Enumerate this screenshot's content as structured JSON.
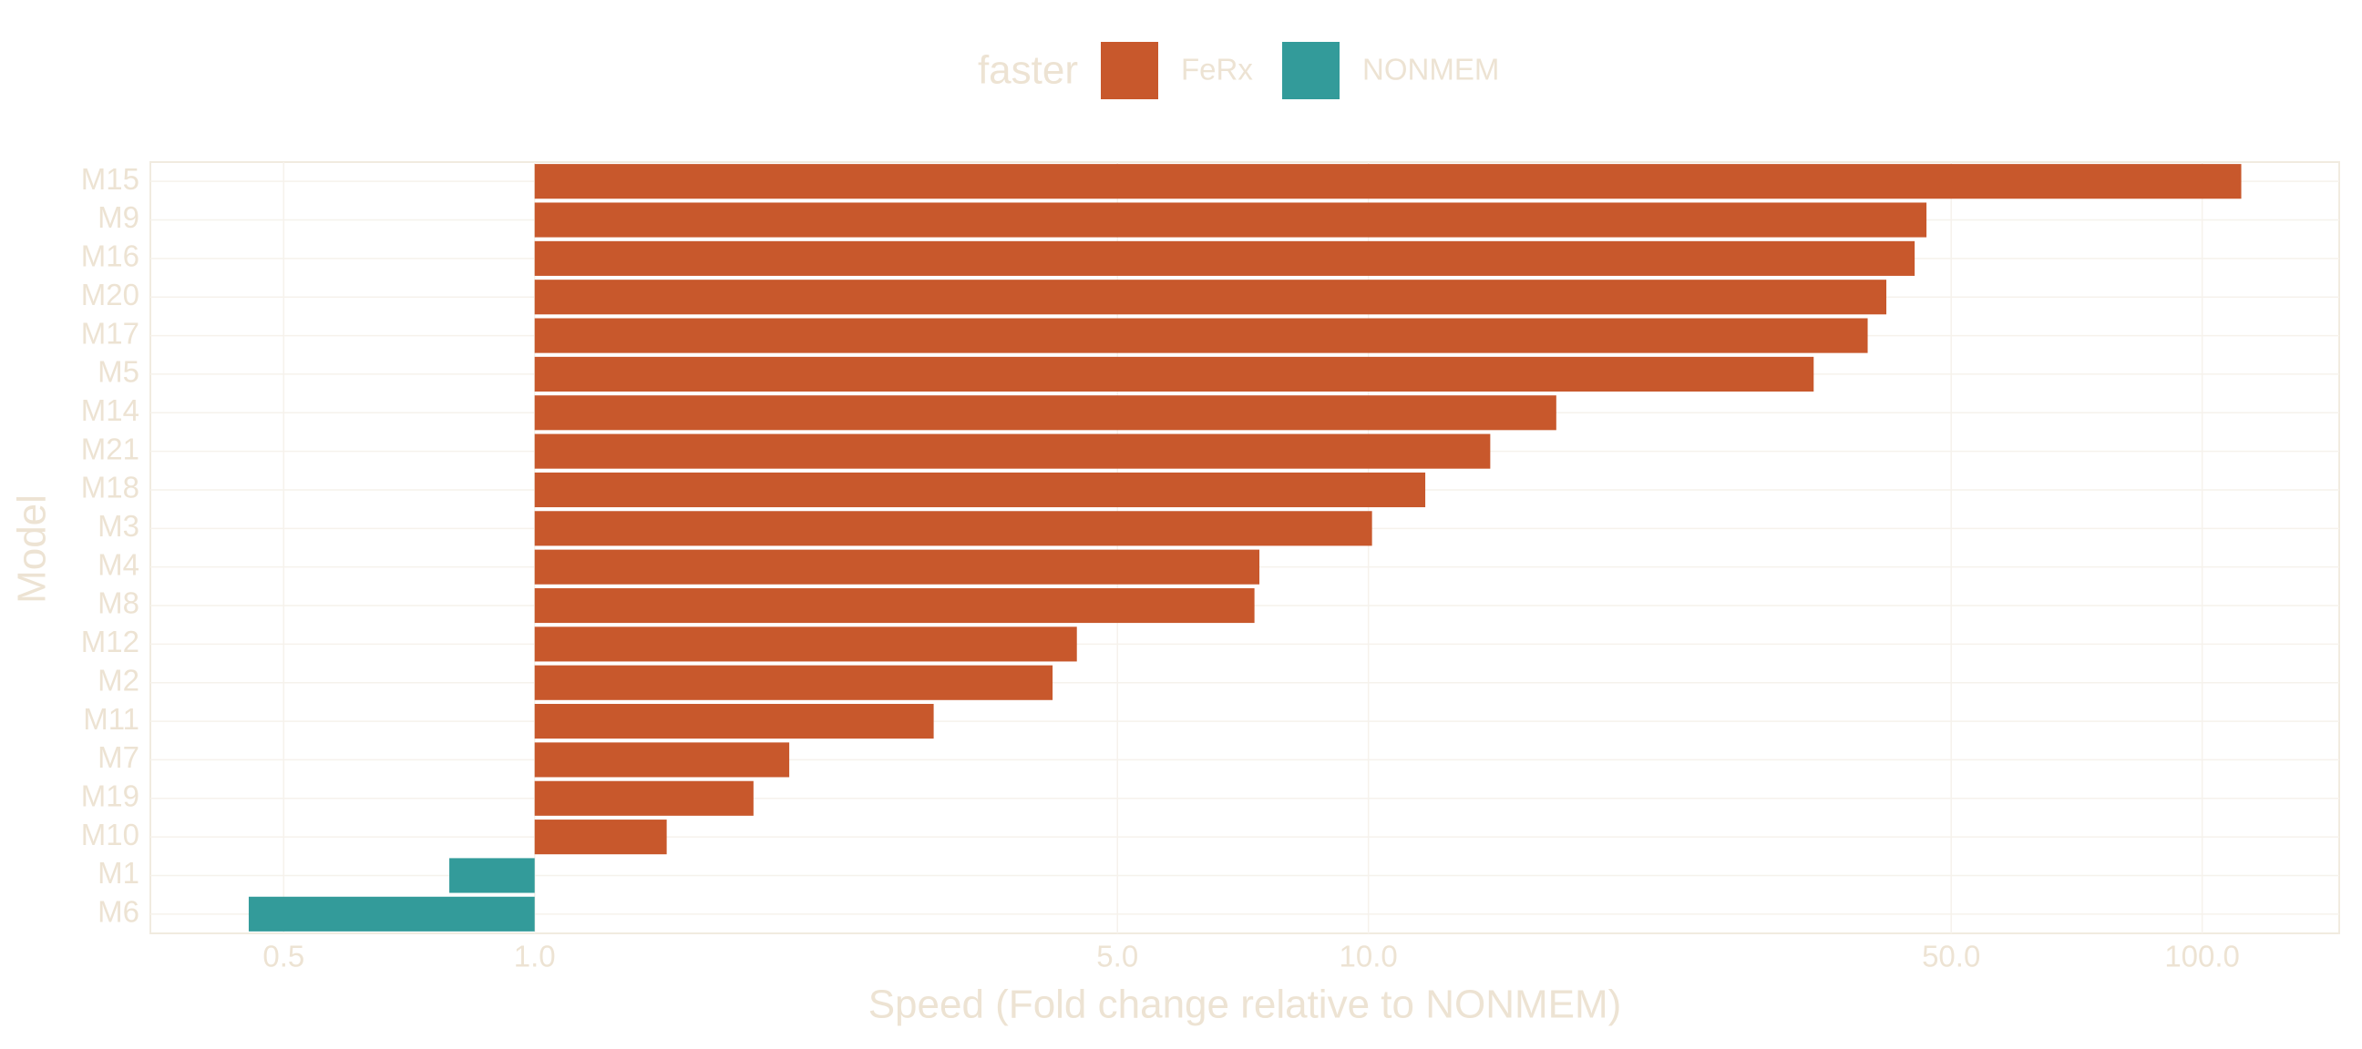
{
  "chart_data": {
    "type": "bar",
    "orientation": "horizontal",
    "x_scale": "log",
    "x_label": "Speed (Fold change relative to NONMEM)",
    "y_label": "Model",
    "legend_title": "faster",
    "legend_position": "top",
    "grid": true,
    "categories": [
      "M15",
      "M9",
      "M16",
      "M20",
      "M17",
      "M5",
      "M14",
      "M21",
      "M18",
      "M3",
      "M4",
      "M8",
      "M12",
      "M2",
      "M11",
      "M7",
      "M19",
      "M10",
      "M1",
      "M6"
    ],
    "series": [
      {
        "name": "FeRx",
        "color": "#c8582c",
        "values": [
          111.4,
          46.7,
          45.2,
          41.8,
          39.7,
          34.2,
          16.8,
          14.0,
          11.7,
          10.1,
          7.4,
          7.3,
          4.47,
          4.18,
          3.01,
          2.02,
          1.83,
          1.44,
          null,
          null
        ]
      },
      {
        "name": "NONMEM",
        "color": "#339b9a",
        "values": [
          null,
          null,
          null,
          null,
          null,
          null,
          null,
          null,
          null,
          null,
          null,
          null,
          null,
          null,
          null,
          null,
          null,
          null,
          0.79,
          0.454
        ]
      }
    ],
    "xlim": [
      0.346,
      146
    ],
    "xticks": [
      0.5,
      {
        "value": 1,
        "label": "1.0"
      },
      {
        "value": 5,
        "label": "5.0"
      },
      {
        "value": 10,
        "label": "10.0"
      },
      {
        "value": 50,
        "label": "50.0"
      },
      {
        "value": 100,
        "label": "100.0"
      }
    ]
  }
}
